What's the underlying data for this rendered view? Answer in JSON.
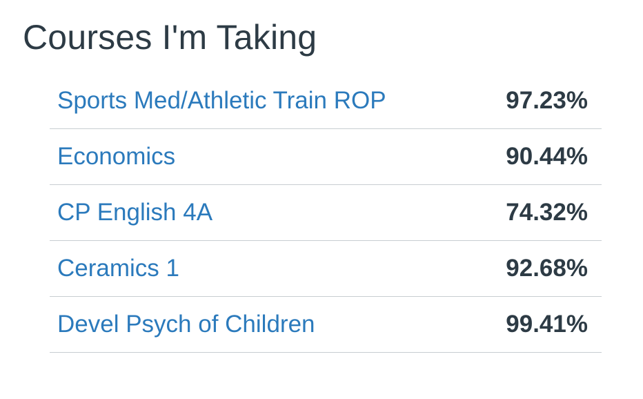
{
  "page": {
    "title": "Courses I'm Taking"
  },
  "courses": [
    {
      "name": "Sports Med/Athletic Train ROP",
      "grade": "97.23%"
    },
    {
      "name": "Economics",
      "grade": "90.44%"
    },
    {
      "name": "CP English 4A",
      "grade": "74.32%"
    },
    {
      "name": "Ceramics 1",
      "grade": "92.68%"
    },
    {
      "name": "Devel Psych of Children",
      "grade": "99.41%"
    }
  ],
  "colors": {
    "link": "#2b7abc",
    "text": "#2d3b45",
    "divider": "#c7cdd1"
  }
}
